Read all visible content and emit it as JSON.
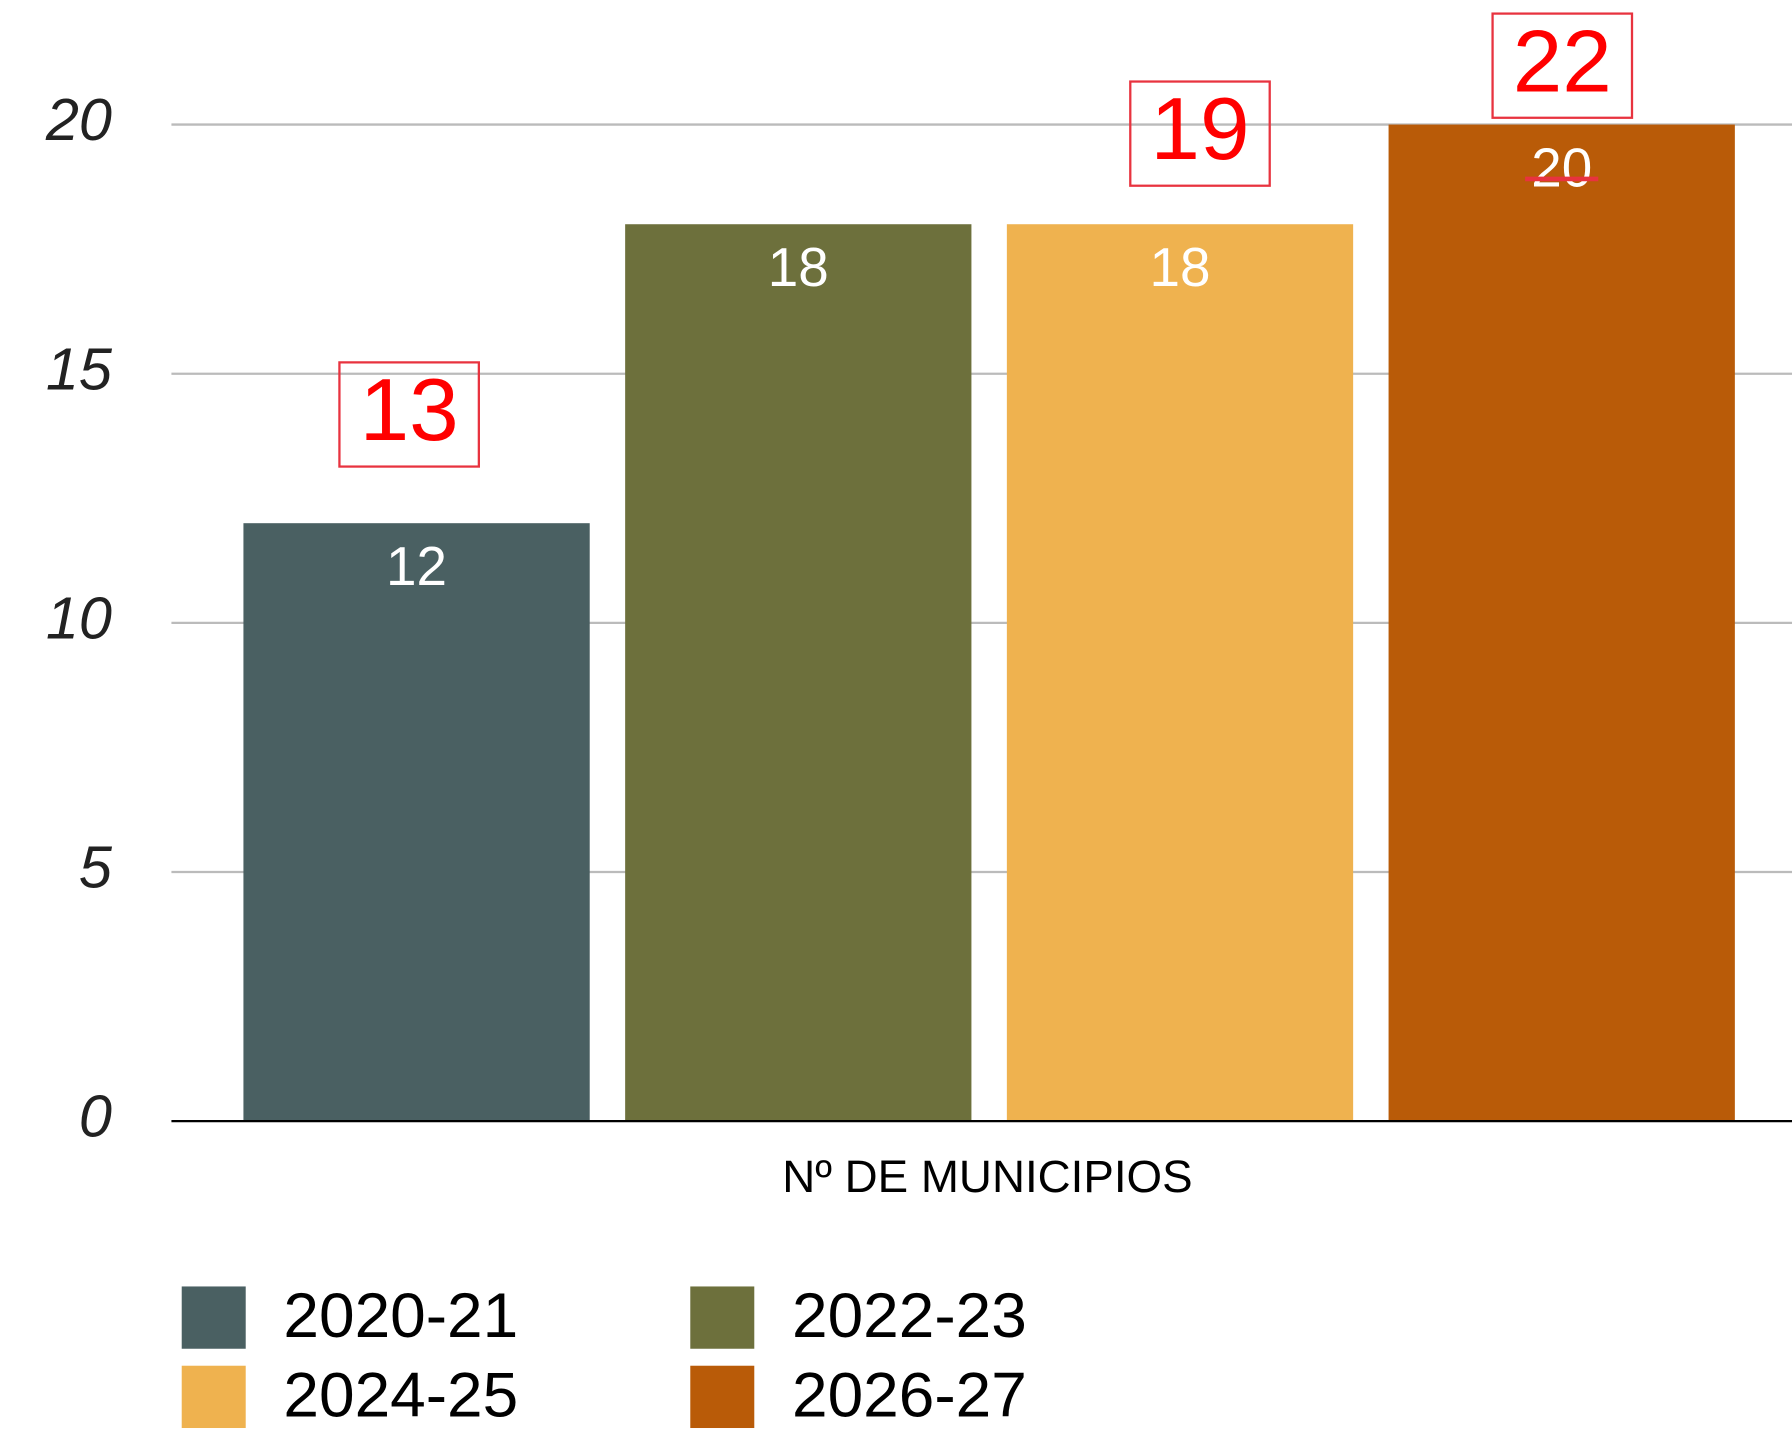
{
  "chart_data": {
    "type": "bar",
    "categories": [
      "Nº DE MUNICIPIOS"
    ],
    "series": [
      {
        "name": "2020-21",
        "color": "#4a6062",
        "values": [
          12
        ]
      },
      {
        "name": "2022-23",
        "color": "#6d703c",
        "values": [
          18
        ]
      },
      {
        "name": "2024-25",
        "color": "#efb24f",
        "values": [
          18
        ]
      },
      {
        "name": "2026-27",
        "color": "#b95b08",
        "values": [
          20
        ]
      }
    ],
    "ylim": [
      0,
      20
    ],
    "yticks": [
      0,
      5,
      10,
      15,
      20
    ],
    "grid": true,
    "legend": "bottom",
    "annotations": [
      "13",
      "19",
      "22"
    ]
  }
}
